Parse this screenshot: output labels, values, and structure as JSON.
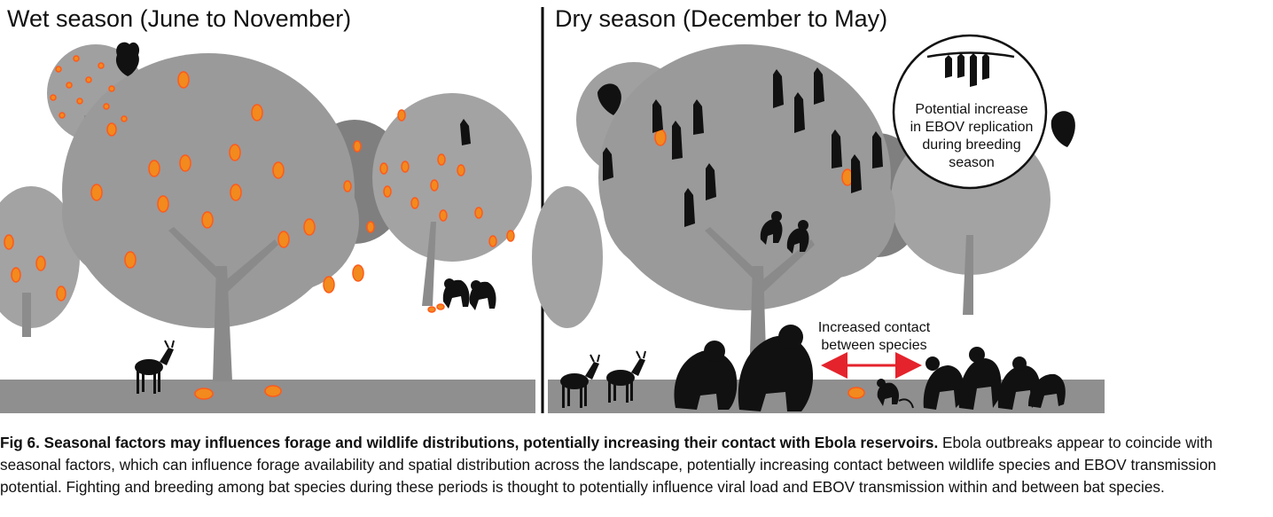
{
  "panels": {
    "wet": {
      "title": "Wet season (June to November)"
    },
    "dry": {
      "title": "Dry season (December to May)"
    }
  },
  "callout": {
    "line1": "Potential increase",
    "line2": "in EBOV replication",
    "line3": "during breeding",
    "line4": "season"
  },
  "contact_label": {
    "line1": "Increased contact",
    "line2": "between species"
  },
  "caption": {
    "bold": "Fig 6. Seasonal factors may influences forage and wildlife distributions, potentially increasing their contact with Ebola reservoirs.",
    "text": " Ebola outbreaks appear to coincide with seasonal factors, which can influence forage availability and spatial distribution across the landscape, potentially increasing contact between wildlife species and EBOV transmission potential. Fighting and breeding among bat species during these periods is thought to potentially influence viral load and EBOV transmission within and between bat species."
  },
  "colors": {
    "tree": "#9a9a9a",
    "tree_dark": "#7d7d7d",
    "ground": "#8f8f8f",
    "fruit": "#f28a1e",
    "fruit_outline": "#ff5a1a",
    "animal": "#111111",
    "arrow": "#e4232c"
  }
}
